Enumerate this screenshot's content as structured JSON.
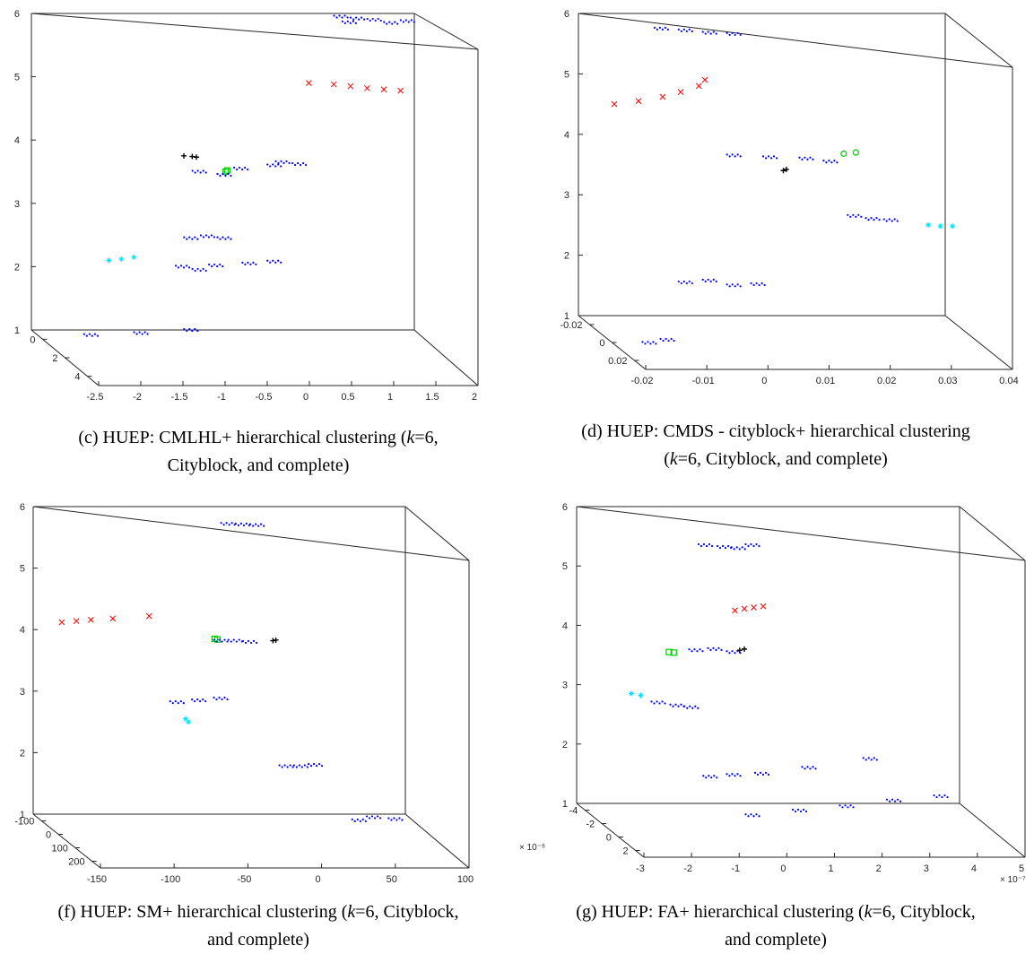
{
  "colors": {
    "blue": "#0000ff",
    "red": "#ff0000",
    "black": "#000000",
    "green": "#00cc00",
    "cyan": "#00e5ff",
    "axis": "#262626"
  },
  "chart_data": [
    {
      "id": "c",
      "type": "scatter",
      "caption_line1_a": "(c) HUEP: CMLHL+ hierarchical clustering (",
      "caption_line1_k": "k",
      "caption_line1_b": "=6,",
      "caption_line2": "Cityblock, and complete)",
      "zticks": [
        "6",
        "5",
        "4",
        "3",
        "2",
        "1"
      ],
      "xticks": [
        "-2.5",
        "-2",
        "-1.5",
        "-1",
        "-0.5",
        "0",
        "0.5",
        "1",
        "1.5",
        "2"
      ],
      "yticks": [
        "0",
        "2",
        "4"
      ],
      "x_exponent": "",
      "y_exponent": "",
      "clusters": [
        {
          "color": "blue",
          "marker": "dot",
          "points": [
            [
              0.8,
              5.95
            ],
            [
              1.2,
              5.9
            ],
            [
              1.6,
              5.88
            ],
            [
              0.9,
              5.86
            ],
            [
              1.4,
              5.85
            ],
            [
              1.0,
              5.92
            ]
          ]
        },
        {
          "color": "red",
          "marker": "x",
          "points": [
            [
              0.4,
              4.9
            ],
            [
              0.7,
              4.88
            ],
            [
              0.9,
              4.85
            ],
            [
              1.1,
              4.82
            ],
            [
              1.3,
              4.8
            ],
            [
              1.5,
              4.78
            ]
          ]
        },
        {
          "color": "black",
          "marker": "plus",
          "points": [
            [
              -1.1,
              3.75
            ],
            [
              -1.0,
              3.74
            ],
            [
              -0.95,
              3.73
            ]
          ]
        },
        {
          "color": "green",
          "marker": "square",
          "points": [
            [
              -0.6,
              3.5
            ],
            [
              -0.58,
              3.52
            ]
          ]
        },
        {
          "color": "blue",
          "marker": "dot",
          "points": [
            [
              -0.9,
              3.5
            ],
            [
              -0.4,
              3.55
            ],
            [
              0.0,
              3.6
            ],
            [
              0.3,
              3.62
            ],
            [
              -0.6,
              3.45
            ],
            [
              0.1,
              3.65
            ]
          ]
        },
        {
          "color": "cyan",
          "marker": "star",
          "points": [
            [
              -2.0,
              2.1
            ],
            [
              -1.85,
              2.12
            ],
            [
              -1.7,
              2.15
            ]
          ]
        },
        {
          "color": "blue",
          "marker": "dot",
          "points": [
            [
              -1.0,
              2.45
            ],
            [
              -0.8,
              2.48
            ],
            [
              -0.6,
              2.45
            ]
          ]
        },
        {
          "color": "blue",
          "marker": "dot",
          "points": [
            [
              -1.1,
              2.0
            ],
            [
              -0.7,
              2.02
            ],
            [
              -0.3,
              2.05
            ],
            [
              0.0,
              2.08
            ],
            [
              -0.9,
              1.95
            ]
          ]
        },
        {
          "color": "blue",
          "marker": "dot",
          "points": [
            [
              -2.2,
              0.92
            ],
            [
              -1.6,
              0.95
            ],
            [
              -1.0,
              1.0
            ]
          ]
        }
      ]
    },
    {
      "id": "d",
      "type": "scatter",
      "caption_line1_a": "(d) HUEP: CMDS - cityblock+ hierarchical clustering",
      "caption_line1_k": "",
      "caption_line1_b": "",
      "caption_line2_k": "k",
      "caption_line2": "=6, Cityblock, and complete)",
      "zticks": [
        "6",
        "5",
        "4",
        "3",
        "2",
        "1"
      ],
      "xticks": [
        "-0.02",
        "-0.01",
        "0",
        "0.01",
        "0.02",
        "0.03",
        "0.04"
      ],
      "yticks": [
        "-0.02",
        "0",
        "0.02"
      ],
      "x_exponent": "",
      "y_exponent": "",
      "clusters": [
        {
          "color": "blue",
          "marker": "dot",
          "points": [
            [
              -0.012,
              5.75
            ],
            [
              -0.008,
              5.72
            ],
            [
              -0.004,
              5.68
            ],
            [
              0.0,
              5.66
            ]
          ]
        },
        {
          "color": "red",
          "marker": "x",
          "points": [
            [
              -0.02,
              4.5
            ],
            [
              -0.016,
              4.55
            ],
            [
              -0.012,
              4.62
            ],
            [
              -0.009,
              4.7
            ],
            [
              -0.006,
              4.8
            ],
            [
              -0.005,
              4.9
            ]
          ]
        },
        {
          "color": "green",
          "marker": "circle",
          "points": [
            [
              0.018,
              3.68
            ],
            [
              0.02,
              3.7
            ]
          ]
        },
        {
          "color": "black",
          "marker": "plus",
          "points": [
            [
              0.008,
              3.4
            ],
            [
              0.0085,
              3.42
            ]
          ]
        },
        {
          "color": "blue",
          "marker": "dot",
          "points": [
            [
              0.0,
              3.65
            ],
            [
              0.006,
              3.62
            ],
            [
              0.012,
              3.6
            ],
            [
              0.016,
              3.55
            ]
          ]
        },
        {
          "color": "blue",
          "marker": "dot",
          "points": [
            [
              0.02,
              2.65
            ],
            [
              0.023,
              2.6
            ],
            [
              0.026,
              2.58
            ]
          ]
        },
        {
          "color": "cyan",
          "marker": "star",
          "points": [
            [
              0.032,
              2.5
            ],
            [
              0.034,
              2.48
            ],
            [
              0.036,
              2.48
            ]
          ]
        },
        {
          "color": "blue",
          "marker": "dot",
          "points": [
            [
              -0.008,
              1.55
            ],
            [
              -0.004,
              1.58
            ],
            [
              0.0,
              1.5
            ],
            [
              0.004,
              1.52
            ]
          ]
        },
        {
          "color": "blue",
          "marker": "dot",
          "points": [
            [
              -0.014,
              0.55
            ],
            [
              -0.011,
              0.6
            ]
          ]
        }
      ]
    },
    {
      "id": "f",
      "type": "scatter",
      "caption_line1_a": "(f) HUEP: SM+ hierarchical clustering (",
      "caption_line1_k": "k",
      "caption_line1_b": "=6, Cityblock,",
      "caption_line2": "and complete)",
      "zticks": [
        "6",
        "5",
        "4",
        "3",
        "2",
        "1"
      ],
      "xticks": [
        "-150",
        "-100",
        "-50",
        "0",
        "50",
        "100"
      ],
      "yticks": [
        "-100",
        "0",
        "100",
        "200"
      ],
      "x_exponent": "",
      "y_exponent": "",
      "clusters": [
        {
          "color": "blue",
          "marker": "dot",
          "points": [
            [
              -40,
              5.72
            ],
            [
              -30,
              5.71
            ],
            [
              -20,
              5.7
            ]
          ]
        },
        {
          "color": "red",
          "marker": "x",
          "points": [
            [
              -155,
              4.12
            ],
            [
              -145,
              4.14
            ],
            [
              -135,
              4.16
            ],
            [
              -120,
              4.18
            ],
            [
              -95,
              4.22
            ]
          ]
        },
        {
          "color": "green",
          "marker": "square",
          "points": [
            [
              -50,
              3.85
            ],
            [
              -48,
              3.84
            ]
          ]
        },
        {
          "color": "blue",
          "marker": "dot",
          "points": [
            [
              -45,
              3.82
            ],
            [
              -35,
              3.82
            ],
            [
              -25,
              3.8
            ]
          ]
        },
        {
          "color": "black",
          "marker": "plus",
          "points": [
            [
              -10,
              3.82
            ],
            [
              -8,
              3.83
            ]
          ]
        },
        {
          "color": "blue",
          "marker": "dot",
          "points": [
            [
              -75,
              2.82
            ],
            [
              -60,
              2.85
            ],
            [
              -45,
              2.88
            ]
          ]
        },
        {
          "color": "cyan",
          "marker": "star",
          "points": [
            [
              -70,
              2.55
            ],
            [
              -68,
              2.5
            ]
          ]
        },
        {
          "color": "blue",
          "marker": "dot",
          "points": [
            [
              0,
              1.78
            ],
            [
              10,
              1.78
            ],
            [
              20,
              1.8
            ]
          ]
        },
        {
          "color": "blue",
          "marker": "dot",
          "points": [
            [
              50,
              0.9
            ],
            [
              60,
              0.95
            ],
            [
              75,
              0.92
            ]
          ]
        }
      ]
    },
    {
      "id": "g",
      "type": "scatter",
      "caption_line1_a": "(g) HUEP: FA+ hierarchical clustering (",
      "caption_line1_k": "k",
      "caption_line1_b": "=6, Cityblock,",
      "caption_line2": "and complete)",
      "zticks": [
        "6",
        "5",
        "4",
        "3",
        "2",
        "1"
      ],
      "xticks": [
        "-3",
        "-2",
        "-1",
        "0",
        "1",
        "2",
        "3",
        "4",
        "5"
      ],
      "yticks": [
        "-4",
        "-2",
        "0",
        "2"
      ],
      "x_exponent": "× 10⁻⁷",
      "y_exponent": "× 10⁻⁶",
      "clusters": [
        {
          "color": "blue",
          "marker": "dot",
          "points": [
            [
              -1.0,
              5.35
            ],
            [
              -0.6,
              5.32
            ],
            [
              -0.3,
              5.3
            ],
            [
              0.0,
              5.35
            ]
          ]
        },
        {
          "color": "red",
          "marker": "x",
          "points": [
            [
              -0.4,
              4.25
            ],
            [
              -0.2,
              4.28
            ],
            [
              0.0,
              4.3
            ],
            [
              0.2,
              4.32
            ]
          ]
        },
        {
          "color": "green",
          "marker": "square",
          "points": [
            [
              -1.8,
              3.55
            ],
            [
              -1.7,
              3.54
            ]
          ]
        },
        {
          "color": "blue",
          "marker": "dot",
          "points": [
            [
              -1.2,
              3.58
            ],
            [
              -0.8,
              3.6
            ],
            [
              -0.4,
              3.55
            ]
          ]
        },
        {
          "color": "black",
          "marker": "plus",
          "points": [
            [
              -0.3,
              3.58
            ],
            [
              -0.2,
              3.6
            ]
          ]
        },
        {
          "color": "cyan",
          "marker": "star",
          "points": [
            [
              -2.6,
              2.85
            ],
            [
              -2.4,
              2.82
            ]
          ]
        },
        {
          "color": "blue",
          "marker": "dot",
          "points": [
            [
              -2.0,
              2.7
            ],
            [
              -1.6,
              2.65
            ],
            [
              -1.3,
              2.62
            ]
          ]
        },
        {
          "color": "blue",
          "marker": "dot",
          "points": [
            [
              -0.9,
              1.45
            ],
            [
              -0.4,
              1.48
            ],
            [
              0.2,
              1.5
            ],
            [
              1.2,
              1.6
            ],
            [
              2.5,
              1.75
            ]
          ]
        },
        {
          "color": "blue",
          "marker": "dot",
          "points": [
            [
              0.0,
              0.8
            ],
            [
              1.0,
              0.88
            ],
            [
              2.0,
              0.95
            ],
            [
              3.0,
              1.05
            ],
            [
              4.0,
              1.12
            ]
          ]
        }
      ]
    }
  ]
}
